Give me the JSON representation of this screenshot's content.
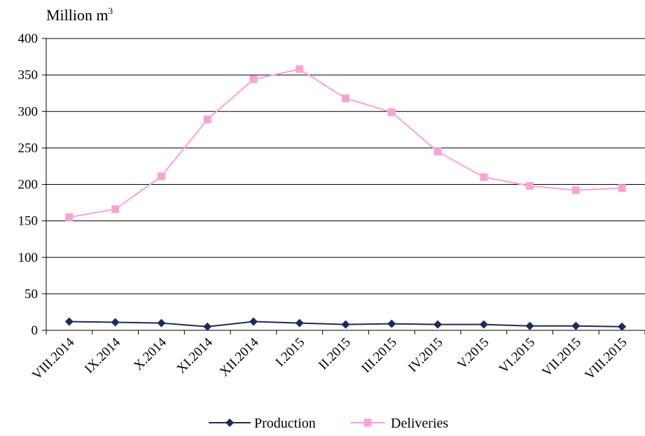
{
  "chart_data": {
    "type": "line",
    "ylabel": "Million m",
    "ylabel_superscript": "3",
    "ylim": [
      0,
      400
    ],
    "yticks": [
      0,
      50,
      100,
      150,
      200,
      250,
      300,
      350,
      400
    ],
    "grid": true,
    "legend_position": "bottom",
    "categories": [
      "VIII.2014",
      "IX.2014",
      "X.2014",
      "XI.2014",
      "XII.2014",
      "I.2015",
      "II.2015",
      "III.2015",
      "IV.2015",
      "V.2015",
      "VI.2015",
      "VII.2015",
      "VIII.2015"
    ],
    "series": [
      {
        "name": "Production",
        "color": "#1f2a5c",
        "marker": "diamond",
        "values": [
          12,
          11,
          10,
          5,
          12,
          10,
          8,
          9,
          8,
          8,
          6,
          6,
          5
        ]
      },
      {
        "name": "Deliveries",
        "color": "#f9a3d5",
        "marker": "square",
        "values": [
          155,
          166,
          211,
          289,
          344,
          358,
          318,
          299,
          245,
          210,
          198,
          192,
          195
        ]
      }
    ]
  }
}
